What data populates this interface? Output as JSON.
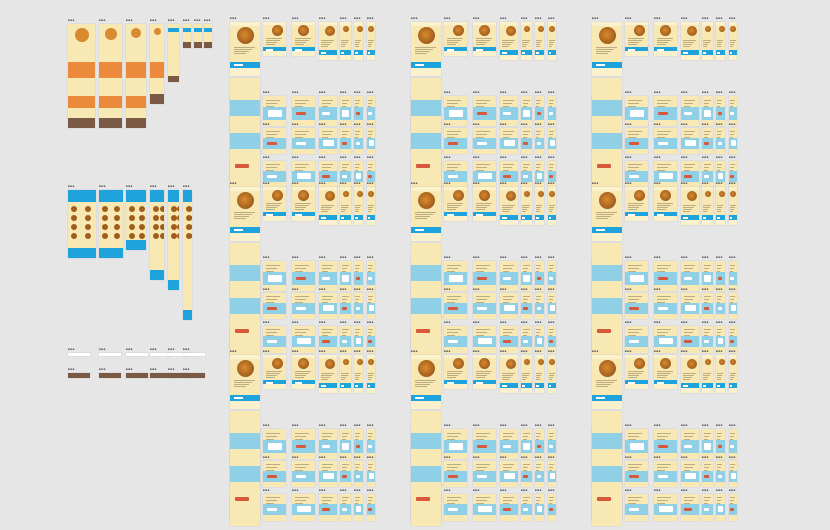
{
  "board": {
    "background": "#e6e6e6",
    "artboard_label": "■■■",
    "colors": {
      "cream": "#f7e8b4",
      "cream_light": "#fbf1cc",
      "sky": "#8fd0e6",
      "blue": "#1ea3dc",
      "orange": "#ec8a3c",
      "brown": "#7a5a45",
      "food": "#d88a2e",
      "food_dark": "#a05d1c",
      "white": "#ffffff",
      "red": "#d8583b"
    }
  }
}
